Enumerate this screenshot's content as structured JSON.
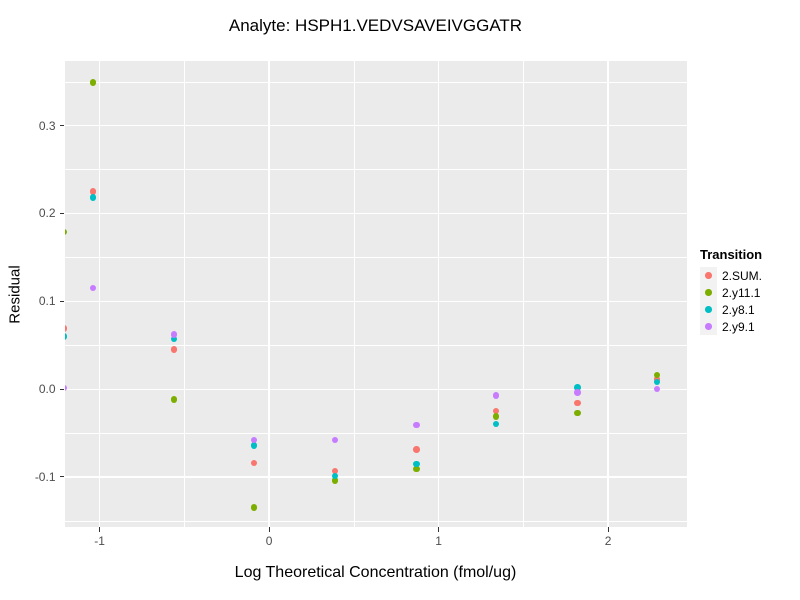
{
  "chart_data": {
    "type": "scatter",
    "title": "Analyte: HSPH1.VEDVSAVEIVGGATR",
    "xlabel": "Log Theoretical Concentration (fmol/ug)",
    "ylabel": "Residual",
    "legend_title": "Transition",
    "legend_position": "right",
    "grid": true,
    "panel_background": "#EBEBEB",
    "gridline_color": "#FFFFFF",
    "tick_label_color": "#4D4D4D",
    "xlim": [
      -1.207,
      2.464
    ],
    "ylim": [
      -0.157,
      0.374
    ],
    "x_ticks": [
      -1,
      0,
      1,
      2
    ],
    "x_tick_labels": [
      "-1",
      "0",
      "1",
      "2"
    ],
    "y_ticks": [
      0.3,
      0.2,
      0.1,
      0.0,
      -0.1
    ],
    "y_tick_labels": [
      "0.3",
      "0.2",
      "0.1",
      "0.0",
      "-0.1"
    ],
    "x": [
      -1.21,
      -1.04,
      -0.56,
      -0.09,
      0.39,
      0.87,
      1.34,
      1.82,
      2.29
    ],
    "series": [
      {
        "name": "2.SUM.",
        "color": "#F8766D",
        "values": [
          0.069,
          0.225,
          0.045,
          -0.084,
          -0.093,
          -0.069,
          -0.025,
          -0.016,
          0.011
        ]
      },
      {
        "name": "2.y11.1",
        "color": "#7CAE00",
        "values": [
          0.179,
          0.349,
          -0.012,
          -0.135,
          -0.104,
          -0.091,
          -0.031,
          -0.027,
          0.016
        ]
      },
      {
        "name": "2.y8.1",
        "color": "#00BFC4",
        "values": [
          0.06,
          0.218,
          0.057,
          -0.064,
          -0.099,
          -0.085,
          -0.04,
          0.002,
          0.008
        ]
      },
      {
        "name": "2.y9.1",
        "color": "#C77CFF",
        "values": [
          0.001,
          0.115,
          0.062,
          -0.058,
          -0.058,
          -0.041,
          -0.007,
          -0.004,
          0.0
        ]
      }
    ]
  }
}
